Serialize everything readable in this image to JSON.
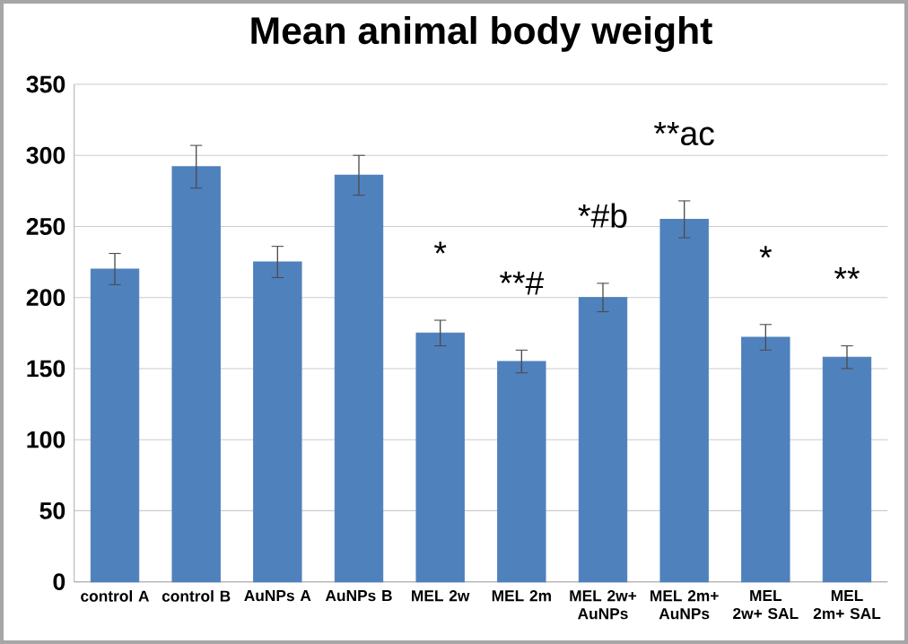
{
  "chart_data": {
    "type": "bar",
    "title": "Mean animal body weight",
    "categories": [
      "control A",
      "control B",
      "AuNPs A",
      "AuNPs B",
      "MEL 2w",
      "MEL 2m",
      "MEL 2w+ AuNPs",
      "MEL 2m+ AuNPs",
      "MEL 2w+ SAL",
      "MEL 2m+ SAL"
    ],
    "values": [
      220,
      292,
      225,
      286,
      175,
      155,
      200,
      255,
      172,
      158
    ],
    "errors": [
      11,
      15,
      11,
      14,
      9,
      8,
      10,
      13,
      9,
      8
    ],
    "color": "#4f81bd",
    "ylim": [
      0,
      350
    ],
    "yticks": [
      0,
      50,
      100,
      150,
      200,
      250,
      300,
      350
    ],
    "grid": "y",
    "annotations": [
      "*",
      "**#",
      "*#b",
      "**ac",
      "*",
      "**"
    ]
  }
}
